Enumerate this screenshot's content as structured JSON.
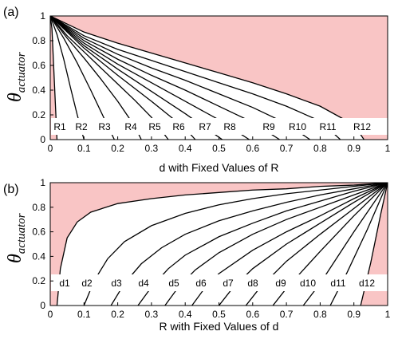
{
  "chart_data": [
    {
      "type": "line",
      "panel_label": "(a)",
      "xlabel": "d with Fixed Values of R",
      "ylabel_main": "θ",
      "ylabel_sub": "actuator",
      "xlim": [
        0,
        1
      ],
      "ylim": [
        0,
        1
      ],
      "xticks": [
        "0",
        "0.1",
        "0.2",
        "0.3",
        "0.4",
        "0.5",
        "0.6",
        "0.7",
        "0.8",
        "0.9",
        "1"
      ],
      "yticks": [
        "0",
        "0.2",
        "0.4",
        "0.6",
        "0.8",
        "1"
      ],
      "shaded_color": "#f9c5c5",
      "curve_labels": [
        "R1",
        "R2",
        "R3",
        "R4",
        "R5",
        "R6",
        "R7",
        "R8",
        "R9",
        "R10",
        "R11",
        "R12"
      ],
      "series": [
        {
          "name": "R1",
          "x": [
            0.0,
            0.005,
            0.01,
            0.015,
            0.02
          ],
          "y": [
            1.0,
            0.9,
            0.6,
            0.3,
            0.0
          ]
        },
        {
          "name": "R2",
          "x": [
            0.0,
            0.02,
            0.04,
            0.06,
            0.08,
            0.1
          ],
          "y": [
            1.0,
            0.85,
            0.65,
            0.42,
            0.2,
            0.0
          ]
        },
        {
          "name": "R3",
          "x": [
            0.0,
            0.04,
            0.08,
            0.12,
            0.16,
            0.19
          ],
          "y": [
            1.0,
            0.82,
            0.62,
            0.4,
            0.17,
            0.0
          ]
        },
        {
          "name": "R4",
          "x": [
            0.0,
            0.05,
            0.1,
            0.15,
            0.2,
            0.25,
            0.27
          ],
          "y": [
            1.0,
            0.82,
            0.66,
            0.49,
            0.31,
            0.11,
            0.0
          ]
        },
        {
          "name": "R5",
          "x": [
            0.0,
            0.05,
            0.1,
            0.15,
            0.2,
            0.25,
            0.3,
            0.35
          ],
          "y": [
            1.0,
            0.84,
            0.71,
            0.58,
            0.45,
            0.32,
            0.18,
            0.0
          ]
        },
        {
          "name": "R6",
          "x": [
            0.0,
            0.1,
            0.2,
            0.3,
            0.4,
            0.43
          ],
          "y": [
            1.0,
            0.74,
            0.52,
            0.31,
            0.09,
            0.0
          ]
        },
        {
          "name": "R7",
          "x": [
            0.0,
            0.1,
            0.2,
            0.3,
            0.4,
            0.51
          ],
          "y": [
            1.0,
            0.76,
            0.57,
            0.39,
            0.21,
            0.0
          ]
        },
        {
          "name": "R8",
          "x": [
            0.0,
            0.1,
            0.2,
            0.3,
            0.4,
            0.5,
            0.59
          ],
          "y": [
            1.0,
            0.78,
            0.61,
            0.46,
            0.31,
            0.16,
            0.0
          ]
        },
        {
          "name": "R9",
          "x": [
            0.0,
            0.1,
            0.2,
            0.3,
            0.4,
            0.5,
            0.6,
            0.68
          ],
          "y": [
            1.0,
            0.8,
            0.65,
            0.52,
            0.4,
            0.27,
            0.14,
            0.0
          ]
        },
        {
          "name": "R10",
          "x": [
            0.0,
            0.1,
            0.2,
            0.3,
            0.4,
            0.5,
            0.6,
            0.7,
            0.77
          ],
          "y": [
            1.0,
            0.82,
            0.69,
            0.58,
            0.48,
            0.37,
            0.26,
            0.13,
            0.0
          ]
        },
        {
          "name": "R11",
          "x": [
            0.0,
            0.1,
            0.2,
            0.3,
            0.4,
            0.5,
            0.6,
            0.7,
            0.8,
            0.86
          ],
          "y": [
            1.0,
            0.84,
            0.73,
            0.64,
            0.55,
            0.46,
            0.37,
            0.27,
            0.15,
            0.0
          ]
        },
        {
          "name": "R12",
          "x": [
            0.0,
            0.1,
            0.2,
            0.3,
            0.4,
            0.5,
            0.6,
            0.7,
            0.8,
            0.9,
            0.93
          ],
          "y": [
            1.0,
            0.87,
            0.78,
            0.7,
            0.62,
            0.54,
            0.46,
            0.37,
            0.27,
            0.12,
            0.0
          ]
        }
      ]
    },
    {
      "type": "line",
      "panel_label": "(b)",
      "xlabel": "R with Fixed Values of d",
      "ylabel_main": "θ",
      "ylabel_sub": "actuator",
      "xlim": [
        0,
        1
      ],
      "ylim": [
        0,
        1
      ],
      "xticks": [
        "0",
        "0.1",
        "0.2",
        "0.3",
        "0.4",
        "0.5",
        "0.6",
        "0.7",
        "0.8",
        "0.9",
        "1"
      ],
      "yticks": [
        "0",
        "0.2",
        "0.4",
        "0.6",
        "0.8",
        "1"
      ],
      "shaded_color": "#f9c5c5",
      "curve_labels": [
        "d1",
        "d2",
        "d3",
        "d4",
        "d5",
        "d6",
        "d7",
        "d8",
        "d9",
        "d10",
        "d11",
        "d12"
      ],
      "series": [
        {
          "name": "d1",
          "x": [
            0.02,
            0.03,
            0.05,
            0.08,
            0.12,
            0.2,
            0.3,
            0.4,
            0.5,
            0.6,
            0.7,
            0.8,
            0.9,
            1.0
          ],
          "y": [
            0.0,
            0.3,
            0.55,
            0.68,
            0.76,
            0.83,
            0.87,
            0.9,
            0.92,
            0.94,
            0.95,
            0.97,
            0.98,
            1.0
          ]
        },
        {
          "name": "d2",
          "x": [
            0.1,
            0.13,
            0.17,
            0.22,
            0.3,
            0.4,
            0.5,
            0.6,
            0.7,
            0.8,
            0.9,
            1.0
          ],
          "y": [
            0.0,
            0.2,
            0.38,
            0.52,
            0.65,
            0.75,
            0.82,
            0.87,
            0.91,
            0.94,
            0.97,
            1.0
          ]
        },
        {
          "name": "d3",
          "x": [
            0.18,
            0.22,
            0.27,
            0.33,
            0.4,
            0.5,
            0.6,
            0.7,
            0.8,
            0.9,
            1.0
          ],
          "y": [
            0.0,
            0.18,
            0.34,
            0.47,
            0.58,
            0.69,
            0.77,
            0.84,
            0.9,
            0.95,
            1.0
          ]
        },
        {
          "name": "d4",
          "x": [
            0.26,
            0.3,
            0.35,
            0.4,
            0.5,
            0.6,
            0.7,
            0.8,
            0.9,
            1.0
          ],
          "y": [
            0.0,
            0.15,
            0.3,
            0.41,
            0.56,
            0.67,
            0.77,
            0.85,
            0.93,
            1.0
          ]
        },
        {
          "name": "d5",
          "x": [
            0.34,
            0.38,
            0.43,
            0.5,
            0.6,
            0.7,
            0.8,
            0.9,
            1.0
          ],
          "y": [
            0.0,
            0.15,
            0.29,
            0.43,
            0.58,
            0.7,
            0.8,
            0.9,
            1.0
          ]
        },
        {
          "name": "d6",
          "x": [
            0.42,
            0.46,
            0.5,
            0.6,
            0.7,
            0.8,
            0.9,
            1.0
          ],
          "y": [
            0.0,
            0.15,
            0.26,
            0.45,
            0.6,
            0.73,
            0.87,
            1.0
          ]
        },
        {
          "name": "d7",
          "x": [
            0.5,
            0.54,
            0.6,
            0.7,
            0.8,
            0.9,
            1.0
          ],
          "y": [
            0.0,
            0.14,
            0.3,
            0.5,
            0.67,
            0.84,
            1.0
          ]
        },
        {
          "name": "d8",
          "x": [
            0.58,
            0.62,
            0.7,
            0.8,
            0.9,
            1.0
          ],
          "y": [
            0.0,
            0.14,
            0.36,
            0.58,
            0.79,
            1.0
          ]
        },
        {
          "name": "d9",
          "x": [
            0.66,
            0.7,
            0.8,
            0.9,
            1.0
          ],
          "y": [
            0.0,
            0.14,
            0.44,
            0.73,
            1.0
          ]
        },
        {
          "name": "d10",
          "x": [
            0.75,
            0.8,
            0.9,
            1.0
          ],
          "y": [
            0.0,
            0.18,
            0.6,
            1.0
          ]
        },
        {
          "name": "d11",
          "x": [
            0.83,
            0.88,
            0.94,
            1.0
          ],
          "y": [
            0.0,
            0.27,
            0.62,
            1.0
          ]
        },
        {
          "name": "d12",
          "x": [
            0.92,
            0.95,
            0.98,
            1.0
          ],
          "y": [
            0.0,
            0.35,
            0.75,
            1.0
          ]
        }
      ]
    }
  ]
}
